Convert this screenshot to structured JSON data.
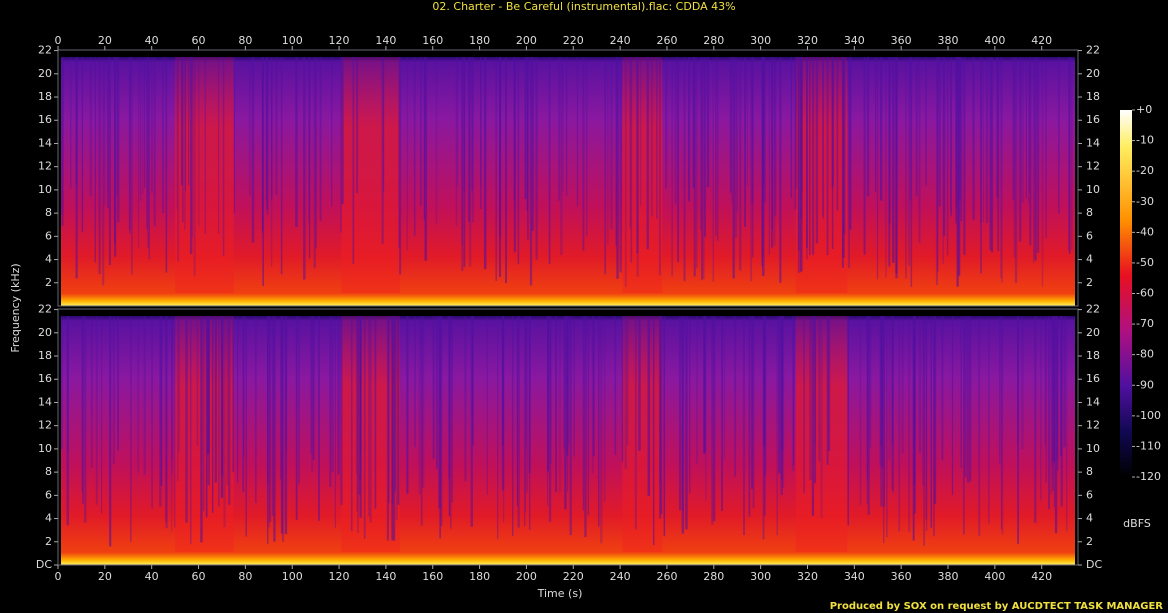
{
  "chart_data": {
    "type": "spectrogram",
    "title": "02. Charter - Be Careful (instrumental).flac: CDDA 43%",
    "x_label": "Time (s)",
    "y_label": "Frequency (kHz)",
    "xlim": [
      0,
      435.5
    ],
    "xticks": [
      0,
      20,
      40,
      60,
      80,
      100,
      120,
      140,
      160,
      180,
      200,
      220,
      240,
      260,
      280,
      300,
      320,
      340,
      360,
      380,
      400,
      420
    ],
    "panels": [
      {
        "ylim": [
          0,
          22.05
        ],
        "yticks": [
          2,
          4,
          6,
          8,
          10,
          12,
          14,
          16,
          18,
          20,
          22
        ]
      },
      {
        "ylim": [
          0,
          22.05
        ],
        "yticks": [
          {
            "value": 0,
            "label": "DC"
          },
          2,
          4,
          6,
          8,
          10,
          12,
          14,
          16,
          18,
          20,
          22
        ]
      }
    ],
    "colorbar": {
      "label": "dBFS",
      "lim": [
        -120,
        0
      ],
      "ticks": [
        {
          "value": 0,
          "label": "+0"
        },
        -10,
        -20,
        -30,
        -40,
        -50,
        -60,
        -70,
        -80,
        -90,
        -100,
        -110,
        -120
      ]
    }
  },
  "credit": "Produced by SOX on request by AUCDTECT TASK MANAGER"
}
